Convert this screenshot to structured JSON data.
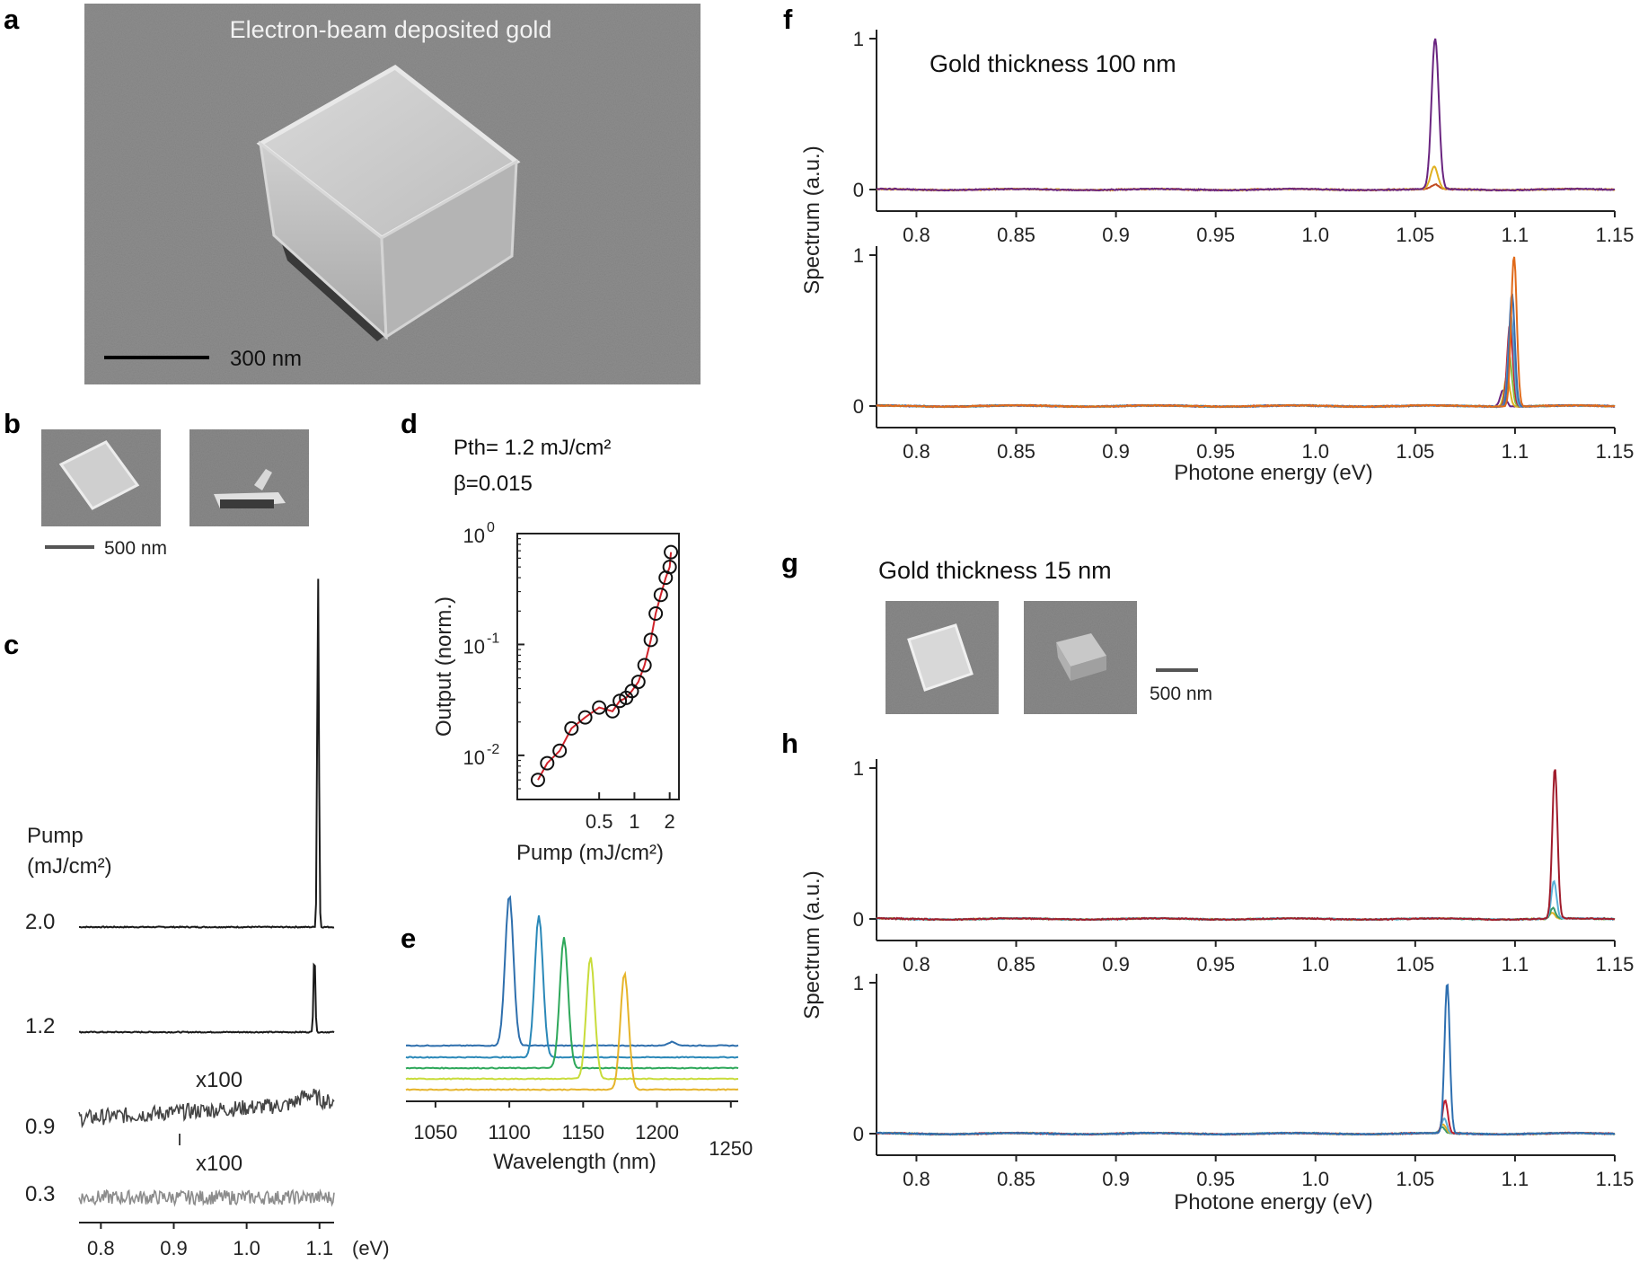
{
  "panels": {
    "a": {
      "letter": "a",
      "caption": "Electron-beam deposited gold",
      "scale": "300 nm"
    },
    "b": {
      "letter": "b",
      "scale": "500 nm"
    },
    "c": {
      "letter": "c",
      "pump_title_1": "Pump",
      "pump_title_2": "(mJ/cm²)",
      "mult_1": "x100",
      "mult_2": "x100",
      "unit": "(eV)"
    },
    "d": {
      "letter": "d",
      "pth": "Pth= 1.2 mJ/cm²",
      "beta": "β=0.015"
    },
    "e": {
      "letter": "e"
    },
    "f": {
      "letter": "f",
      "annotation": "Gold thickness 100 nm"
    },
    "g": {
      "letter": "g",
      "annotation": "Gold thickness 15 nm",
      "scale": "500 nm"
    },
    "h": {
      "letter": "h"
    }
  },
  "chart_data": [
    {
      "id": "c",
      "type": "line",
      "xlabel": "(eV)",
      "xlim": [
        0.77,
        1.12
      ],
      "xticks": [
        "0.8",
        "0.9",
        "1.0",
        "1.1"
      ],
      "xtick_values": [
        0.8,
        0.9,
        1.0,
        1.1
      ],
      "series": [
        {
          "name": "2.0",
          "peak_ev": 1.098,
          "peak_rel": 1.0,
          "color": "#1a1a1a"
        },
        {
          "name": "1.2",
          "peak_ev": 1.093,
          "peak_rel": 1.0,
          "color": "#1a1a1a"
        },
        {
          "name": "0.9",
          "scaled": "x100",
          "color": "#444444"
        },
        {
          "name": "0.3",
          "scaled": "x100",
          "color": "#8c8c8c"
        }
      ]
    },
    {
      "id": "d",
      "type": "scatter",
      "xlabel": "Pump (mJ/cm²)",
      "ylabel": "Output (norm.)",
      "xscale": "log",
      "yscale": "log",
      "xlim": [
        0.1,
        2.4
      ],
      "ylim": [
        0.004,
        1.0
      ],
      "xticks": [
        "0.5",
        "1",
        "2"
      ],
      "xtick_values": [
        0.5,
        1,
        2
      ],
      "yticks": [
        "10",
        "10",
        "10"
      ],
      "ytick_exps": [
        "0",
        "-1",
        "-2"
      ],
      "ytick_values": [
        1.0,
        0.1,
        0.01
      ],
      "x": [
        0.15,
        0.18,
        0.23,
        0.29,
        0.38,
        0.5,
        0.65,
        0.75,
        0.85,
        0.95,
        1.08,
        1.22,
        1.38,
        1.52,
        1.68,
        1.85,
        2.0,
        2.05
      ],
      "y": [
        0.006,
        0.0085,
        0.011,
        0.0175,
        0.022,
        0.027,
        0.025,
        0.031,
        0.033,
        0.038,
        0.046,
        0.065,
        0.11,
        0.19,
        0.28,
        0.4,
        0.5,
        0.68
      ],
      "fit_color": "#d0222a",
      "marker": "open-circle"
    },
    {
      "id": "e",
      "type": "line",
      "xlabel": "Wavelength (nm)",
      "xlim": [
        1030,
        1255
      ],
      "xticks": [
        "1050",
        "1100",
        "1150",
        "1200",
        "1250"
      ],
      "xtick_values": [
        1050,
        1100,
        1150,
        1200,
        1250
      ],
      "series": [
        {
          "name": "peak 1100 nm",
          "peak_nm": 1100,
          "color": "#2e6fad"
        },
        {
          "name": "peak 1120 nm",
          "peak_nm": 1120,
          "color": "#2a88b8"
        },
        {
          "name": "peak 1137 nm",
          "peak_nm": 1137,
          "color": "#2ea85a"
        },
        {
          "name": "peak 1155 nm",
          "peak_nm": 1155,
          "color": "#c8dc3a"
        },
        {
          "name": "peak 1178 nm",
          "peak_nm": 1178,
          "color": "#e6b42a"
        }
      ]
    },
    {
      "id": "f-top",
      "type": "line",
      "ylabel": "Spectrum (a.u.)",
      "xlim": [
        0.78,
        1.15
      ],
      "ylim": [
        0,
        1
      ],
      "xticks": [
        "0.8",
        "0.85",
        "0.9",
        "0.95",
        "1.0",
        "1.05",
        "1.1",
        "1.15"
      ],
      "xtick_values": [
        0.8,
        0.85,
        0.9,
        0.95,
        1.0,
        1.05,
        1.1,
        1.15
      ],
      "yticks": [
        "1",
        "0"
      ],
      "ytick_values": [
        1,
        0
      ],
      "series": [
        {
          "name": "main",
          "peak_ev": 1.06,
          "peak": 1.0,
          "color": "#6a2580"
        },
        {
          "name": "lower",
          "peak_ev": 1.0595,
          "peak": 0.15,
          "color": "#e0b020"
        },
        {
          "name": "base",
          "peak_ev": 1.06,
          "peak": 0.03,
          "color": "#c04a20"
        }
      ]
    },
    {
      "id": "f-bottom",
      "type": "line",
      "xlabel": "Photone energy (eV)",
      "xlim": [
        0.78,
        1.15
      ],
      "ylim": [
        0,
        1
      ],
      "xticks": [
        "0.8",
        "0.85",
        "0.9",
        "0.95",
        "1.0",
        "1.05",
        "1.1",
        "1.15"
      ],
      "xtick_values": [
        0.8,
        0.85,
        0.9,
        0.95,
        1.0,
        1.05,
        1.1,
        1.15
      ],
      "yticks": [
        "1",
        "0"
      ],
      "ytick_values": [
        1,
        0
      ],
      "series": [
        {
          "name": "s1",
          "peak_ev": 1.0995,
          "peak": 1.0,
          "color": "#e06a1a"
        },
        {
          "name": "s2",
          "peak_ev": 1.0985,
          "peak": 0.75,
          "color": "#3a6fb0"
        },
        {
          "name": "s3",
          "peak_ev": 1.098,
          "peak": 0.6,
          "color": "#5aa0d0"
        },
        {
          "name": "s4",
          "peak_ev": 1.0975,
          "peak": 0.55,
          "color": "#c02030"
        },
        {
          "name": "s5",
          "peak_ev": 1.097,
          "peak": 0.35,
          "color": "#8ac040"
        },
        {
          "name": "s6",
          "peak_ev": 1.096,
          "peak": 0.2,
          "color": "#e0b020"
        },
        {
          "name": "s7",
          "peak_ev": 1.094,
          "peak": 0.11,
          "color": "#6a2580"
        }
      ]
    },
    {
      "id": "h-top",
      "type": "line",
      "ylabel": "Spectrum (a.u.)",
      "xlim": [
        0.78,
        1.15
      ],
      "ylim": [
        0,
        1
      ],
      "xticks": [
        "0.8",
        "0.85",
        "0.9",
        "0.95",
        "1.0",
        "1.05",
        "1.1",
        "1.15"
      ],
      "xtick_values": [
        0.8,
        0.85,
        0.9,
        0.95,
        1.0,
        1.05,
        1.1,
        1.15
      ],
      "yticks": [
        "1",
        "0"
      ],
      "ytick_values": [
        1,
        0
      ],
      "series": [
        {
          "name": "s1",
          "peak_ev": 1.12,
          "peak": 1.0,
          "color": "#a01c2c"
        },
        {
          "name": "s2",
          "peak_ev": 1.1195,
          "peak": 0.25,
          "color": "#5ab0d8"
        },
        {
          "name": "s3",
          "peak_ev": 1.119,
          "peak": 0.07,
          "color": "#3a9a6a"
        },
        {
          "name": "s4",
          "peak_ev": 1.1185,
          "peak": 0.04,
          "color": "#e0b020"
        }
      ]
    },
    {
      "id": "h-bottom",
      "type": "line",
      "xlabel": "Photone energy (eV)",
      "xlim": [
        0.78,
        1.15
      ],
      "ylim": [
        0,
        1
      ],
      "xticks": [
        "0.8",
        "0.85",
        "0.9",
        "0.95",
        "1.0",
        "1.05",
        "1.1",
        "1.15"
      ],
      "xtick_values": [
        0.8,
        0.85,
        0.9,
        0.95,
        1.0,
        1.05,
        1.1,
        1.15
      ],
      "yticks": [
        "1",
        "0"
      ],
      "ytick_values": [
        1,
        0
      ],
      "series": [
        {
          "name": "s1",
          "peak_ev": 1.066,
          "peak": 1.0,
          "color": "#2e6fb0"
        },
        {
          "name": "s2",
          "peak_ev": 1.065,
          "peak": 0.22,
          "color": "#c02030"
        },
        {
          "name": "s3",
          "peak_ev": 1.0645,
          "peak": 0.1,
          "color": "#5ab0d8"
        },
        {
          "name": "s4",
          "peak_ev": 1.064,
          "peak": 0.06,
          "color": "#e0b020"
        },
        {
          "name": "s5",
          "peak_ev": 1.0635,
          "peak": 0.04,
          "color": "#3a9a6a"
        }
      ]
    }
  ]
}
